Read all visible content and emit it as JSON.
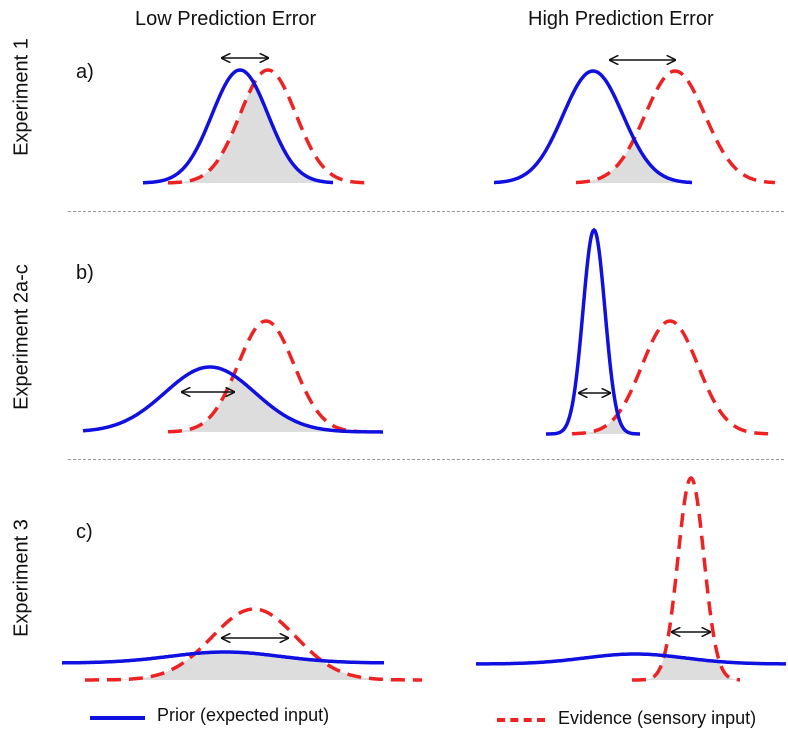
{
  "columns": {
    "low": "Low Prediction Error",
    "high": "High Prediction Error"
  },
  "rows": [
    {
      "label": "Experiment 1",
      "panel": "a)"
    },
    {
      "label": "Experiment 2a-c",
      "panel": "b)"
    },
    {
      "label": "Experiment 3",
      "panel": "c)"
    }
  ],
  "legend": {
    "prior": "Prior (expected input)",
    "evidence": "Evidence (sensory input)"
  },
  "colors": {
    "prior": "#1010e0",
    "evidence": "#ee2222",
    "overlap": "#dddddd",
    "arrow": "#111111"
  }
}
